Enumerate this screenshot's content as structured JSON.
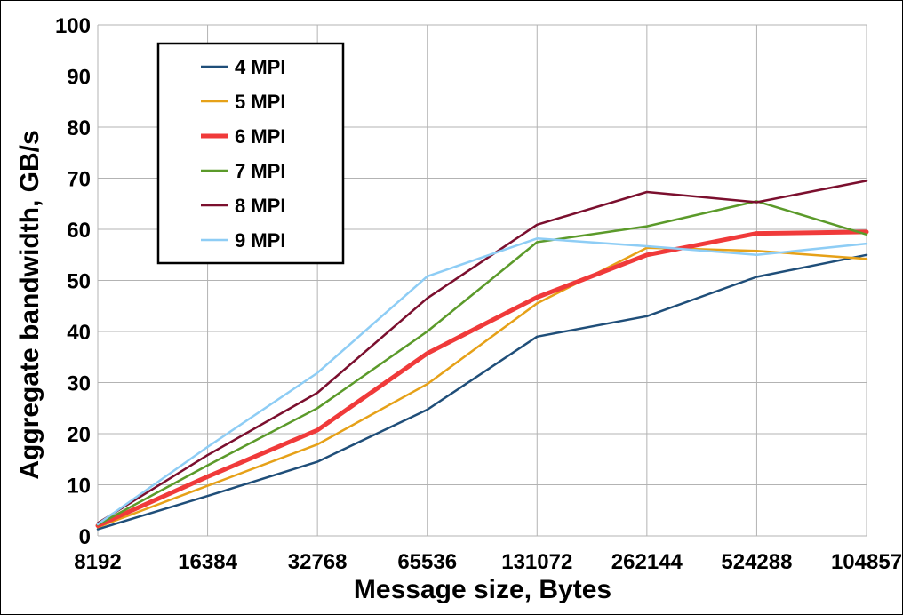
{
  "chart_data": {
    "type": "line",
    "title": "",
    "xlabel": "Message size, Bytes",
    "ylabel": "Aggregate bandwidth, GB/s",
    "categories": [
      "8192",
      "16384",
      "32768",
      "65536",
      "131072",
      "262144",
      "524288",
      "104857"
    ],
    "ylim": [
      0,
      100
    ],
    "yticks": [
      "0",
      "10",
      "20",
      "30",
      "40",
      "50",
      "60",
      "70",
      "80",
      "90",
      "100"
    ],
    "grid": true,
    "legend_position": "top-left",
    "series": [
      {
        "name": "4 MPI",
        "color": "#1f4e79",
        "values": [
          1.3,
          7.8,
          14.5,
          24.7,
          39.0,
          43.0,
          50.7,
          55.0
        ]
      },
      {
        "name": "5 MPI",
        "color": "#e6a118",
        "values": [
          1.7,
          9.8,
          17.9,
          29.7,
          45.5,
          56.4,
          55.8,
          54.2
        ]
      },
      {
        "name": "6 MPI",
        "color": "#f03a3a",
        "values": [
          2.0,
          11.6,
          20.7,
          35.7,
          46.7,
          55.0,
          59.2,
          59.5
        ]
      },
      {
        "name": "7 MPI",
        "color": "#5b9a2a",
        "values": [
          2.2,
          13.8,
          25.0,
          40.0,
          57.5,
          60.6,
          65.5,
          59.0
        ]
      },
      {
        "name": "8 MPI",
        "color": "#7b0f2e",
        "values": [
          2.5,
          15.8,
          28.0,
          46.5,
          60.9,
          67.3,
          65.3,
          69.5
        ]
      },
      {
        "name": "9 MPI",
        "color": "#8ecdf5",
        "values": [
          2.3,
          17.4,
          31.9,
          50.8,
          58.2,
          56.7,
          55.0,
          57.2
        ]
      }
    ]
  }
}
